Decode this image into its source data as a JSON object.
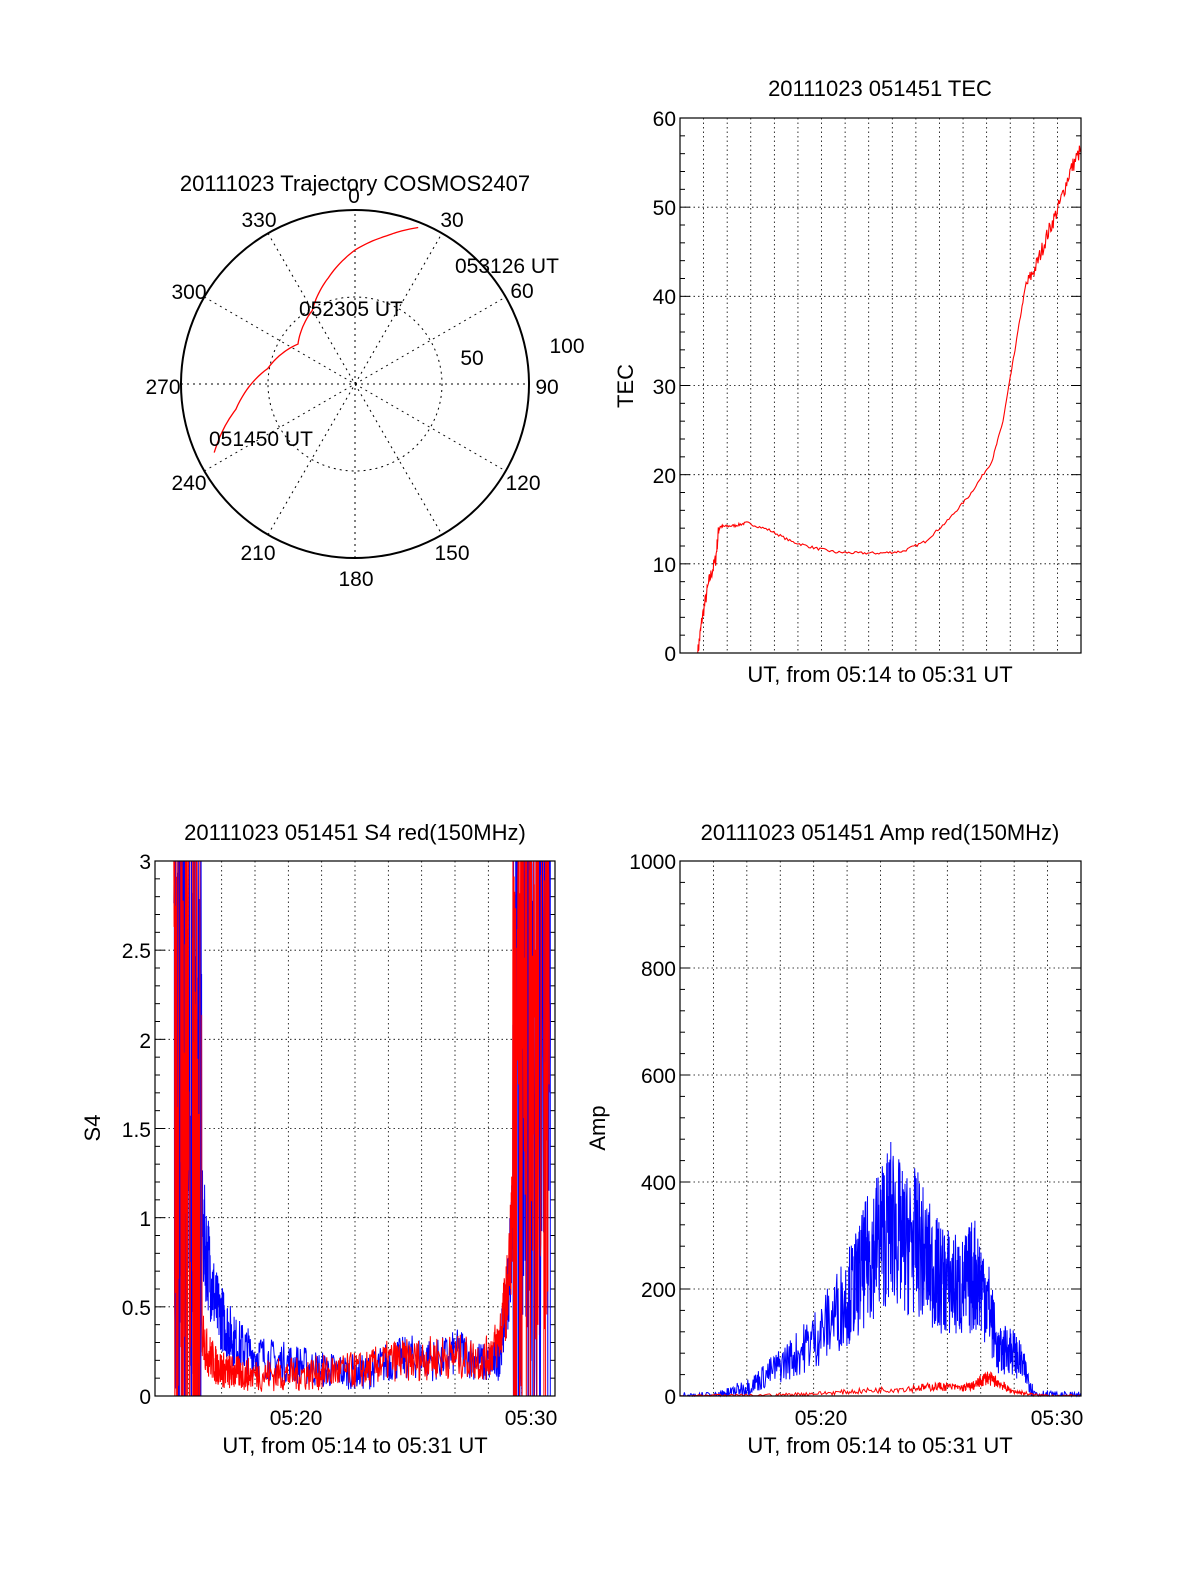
{
  "chart_data": [
    {
      "id": "trajectory",
      "type": "polar",
      "title": "20111023 Trajectory COSMOS2407",
      "azimuth_labels": [
        "0",
        "30",
        "60",
        "90",
        "120",
        "150",
        "180",
        "210",
        "240",
        "270",
        "300",
        "330"
      ],
      "radial_labels": [
        "50",
        "100"
      ],
      "r_max": 100,
      "grid": true,
      "series": [
        {
          "color": "#ff0000",
          "points": [
            {
              "az": 244,
              "r": 90
            },
            {
              "az": 258,
              "r": 70
            },
            {
              "az": 280,
              "r": 51
            },
            {
              "az": 305,
              "r": 40
            },
            {
              "az": 330,
              "r": 49
            },
            {
              "az": 346,
              "r": 63
            },
            {
              "az": 0,
              "r": 77
            },
            {
              "az": 12,
              "r": 87
            },
            {
              "az": 22,
              "r": 97
            }
          ]
        }
      ],
      "annotations": [
        {
          "text": "053126 UT",
          "az": 32,
          "r": 105
        },
        {
          "text": "052305 UT",
          "az": 358,
          "r": 45
        },
        {
          "text": "051450 UT",
          "az": 259,
          "r": 85
        }
      ]
    },
    {
      "id": "tec",
      "type": "line",
      "title": "20111023 051451 TEC",
      "xlabel": "UT, from 05:14 to 05:31 UT",
      "ylabel": "TEC",
      "xlim": [
        0,
        18
      ],
      "ylim": [
        0,
        60
      ],
      "yticks": [
        "0",
        "10",
        "20",
        "30",
        "40",
        "50",
        "60"
      ],
      "xticks": [],
      "grid": true,
      "series": [
        {
          "color": "#ff0000",
          "x": [
            0.8,
            1.0,
            1.3,
            1.6,
            1.75,
            2.0,
            2.5,
            3.0,
            4.0,
            5.0,
            6.0,
            7.0,
            8.0,
            9.0,
            10.0,
            11.0,
            12.0,
            13.0,
            14.0,
            14.5,
            15.0,
            15.5,
            16.0,
            16.5,
            17.0,
            17.5,
            18.0
          ],
          "y": [
            0,
            4,
            8,
            10.5,
            14.2,
            14.2,
            14.3,
            14.6,
            13.8,
            12.5,
            11.8,
            11.3,
            11.2,
            11.2,
            11.4,
            12.5,
            14.8,
            17.7,
            21.5,
            26,
            33.5,
            41,
            43.5,
            47,
            50,
            54,
            56.5
          ]
        }
      ]
    },
    {
      "id": "s4",
      "type": "line",
      "title": "20111023 051451 S4 red(150MHz)",
      "xlabel": "UT, from 05:14 to 05:31 UT",
      "ylabel": "S4",
      "xlim": [
        0,
        17
      ],
      "ylim": [
        0,
        3
      ],
      "yticks": [
        "0",
        "0.5",
        "1",
        "1.5",
        "2",
        "2.5",
        "3"
      ],
      "xticks": [
        "05:20",
        "05:30"
      ],
      "grid": true,
      "series": [
        {
          "color": "#0000ff",
          "x": [
            0.8,
            1.2,
            1.6,
            1.8,
            2.2,
            2.6,
            3.0,
            3.4,
            4.0,
            5.0,
            6.0,
            7.0,
            8.0,
            9.0,
            10.0,
            11.0,
            12.0,
            13.0,
            14.0,
            14.6,
            15.0,
            15.4,
            15.8,
            16.2,
            16.8
          ],
          "y": [
            1.6,
            2.2,
            1.5,
            1.1,
            0.8,
            0.5,
            0.4,
            0.3,
            0.25,
            0.2,
            0.18,
            0.15,
            0.14,
            0.13,
            0.2,
            0.22,
            0.2,
            0.25,
            0.18,
            0.2,
            0.6,
            1.4,
            1.9,
            2.0,
            2.2
          ]
        },
        {
          "color": "#ff0000",
          "x": [
            0.8,
            1.2,
            1.6,
            1.8,
            2.2,
            2.6,
            3.0,
            3.4,
            4.0,
            5.0,
            6.0,
            7.0,
            8.0,
            9.0,
            10.0,
            11.0,
            12.0,
            13.0,
            14.0,
            14.6,
            15.0,
            15.4,
            15.8,
            16.2,
            16.8
          ],
          "y": [
            1.2,
            1.8,
            1.0,
            0.5,
            0.25,
            0.17,
            0.14,
            0.13,
            0.12,
            0.12,
            0.12,
            0.13,
            0.14,
            0.15,
            0.2,
            0.2,
            0.22,
            0.22,
            0.2,
            0.3,
            0.6,
            1.5,
            2.0,
            2.0,
            2.2
          ]
        }
      ]
    },
    {
      "id": "amp",
      "type": "line",
      "title": "20111023 051451 Amp red(150MHz)",
      "xlabel": "UT, from 05:14 to 05:31 UT",
      "ylabel": "Amp",
      "xlim": [
        0,
        17
      ],
      "ylim": [
        0,
        1000
      ],
      "yticks": [
        "0",
        "200",
        "400",
        "600",
        "800",
        "1000"
      ],
      "xticks": [
        "05:20",
        "05:30"
      ],
      "grid": true,
      "series": [
        {
          "color": "#0000ff",
          "x": [
            0,
            1.5,
            2.0,
            3.0,
            4.0,
            5.0,
            6.0,
            7.0,
            7.5,
            8.0,
            8.5,
            9.0,
            9.5,
            10.0,
            10.5,
            11.0,
            11.5,
            12.0,
            12.5,
            13.0,
            13.5,
            14.0,
            14.5,
            15.0,
            16.0,
            17.0
          ],
          "y": [
            0,
            0,
            5,
            20,
            50,
            80,
            120,
            180,
            210,
            260,
            300,
            330,
            280,
            290,
            250,
            220,
            210,
            200,
            230,
            190,
            80,
            90,
            60,
            5,
            0,
            0
          ]
        },
        {
          "color": "#ff0000",
          "x": [
            0,
            4.0,
            6.0,
            8.0,
            10.0,
            11.0,
            12.0,
            12.5,
            13.0,
            13.5,
            14.0,
            15.0,
            17.0
          ],
          "y": [
            0,
            2,
            5,
            10,
            15,
            18,
            15,
            20,
            35,
            25,
            10,
            2,
            0
          ]
        }
      ]
    }
  ]
}
